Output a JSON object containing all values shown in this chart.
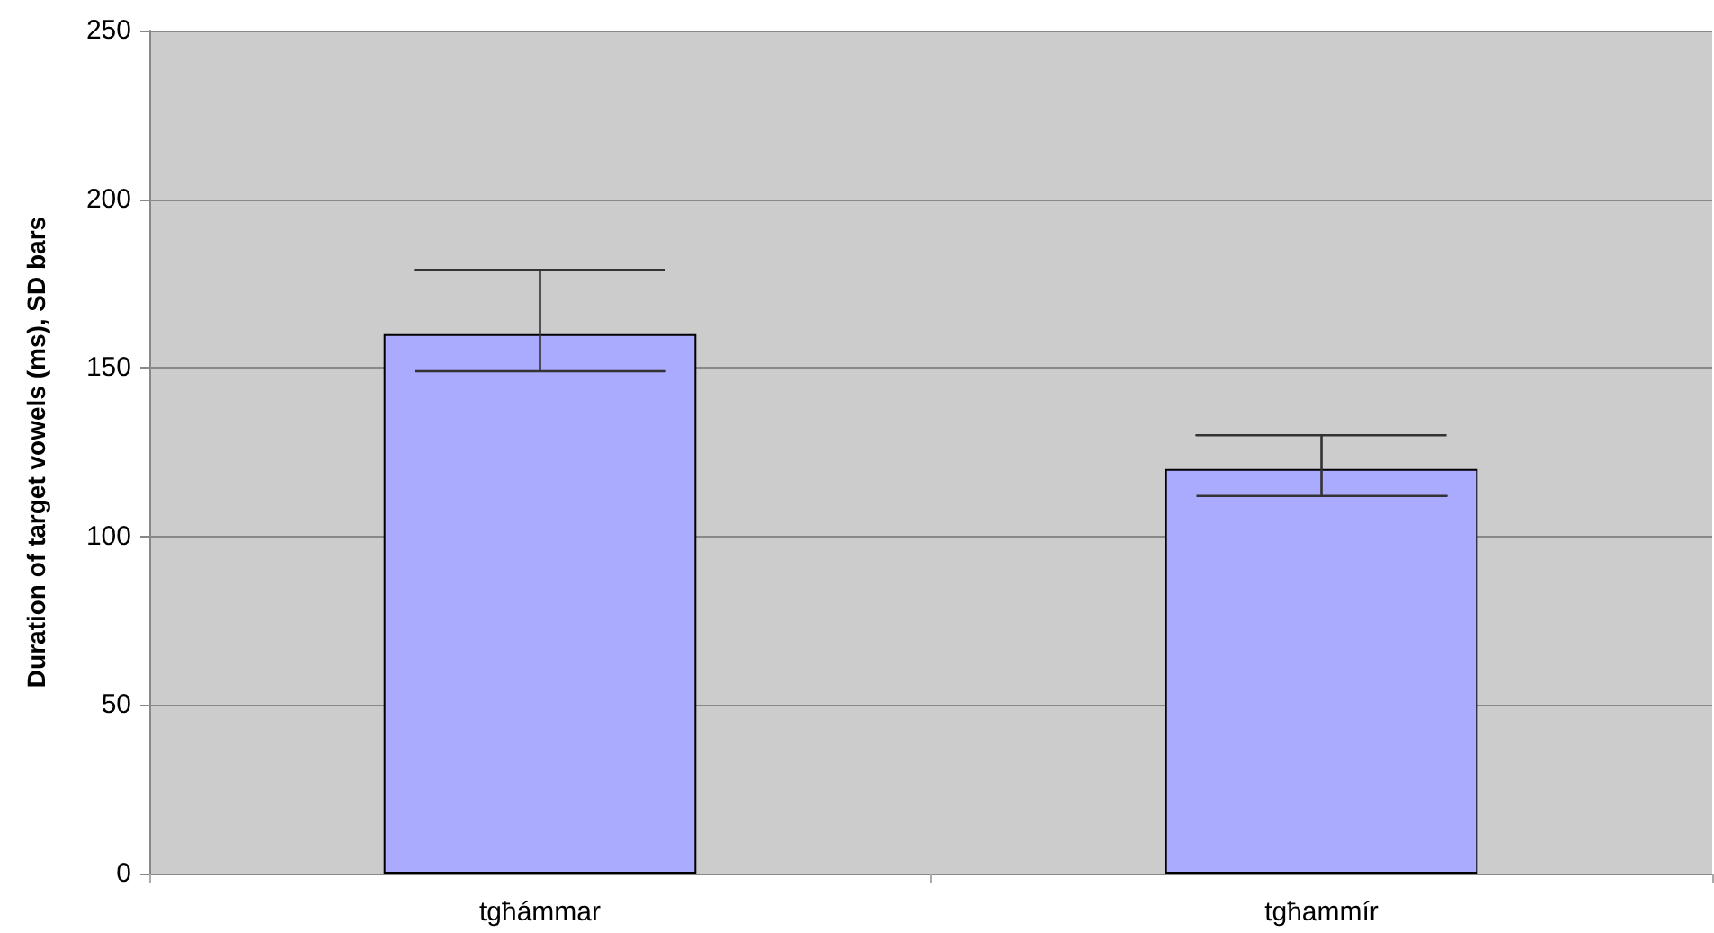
{
  "chart_data": {
    "type": "bar",
    "ylabel": "Duration of target vowels (ms), SD bars",
    "categories": [
      "tgħámmar",
      "tgħammír"
    ],
    "values": [
      160,
      120
    ],
    "errors": [
      [
        149,
        179
      ],
      [
        112,
        130
      ]
    ],
    "color": "#aaaaff",
    "ylim": [
      0,
      250
    ],
    "yticks": [
      0,
      50,
      100,
      150,
      200,
      250
    ],
    "grid": "y"
  }
}
